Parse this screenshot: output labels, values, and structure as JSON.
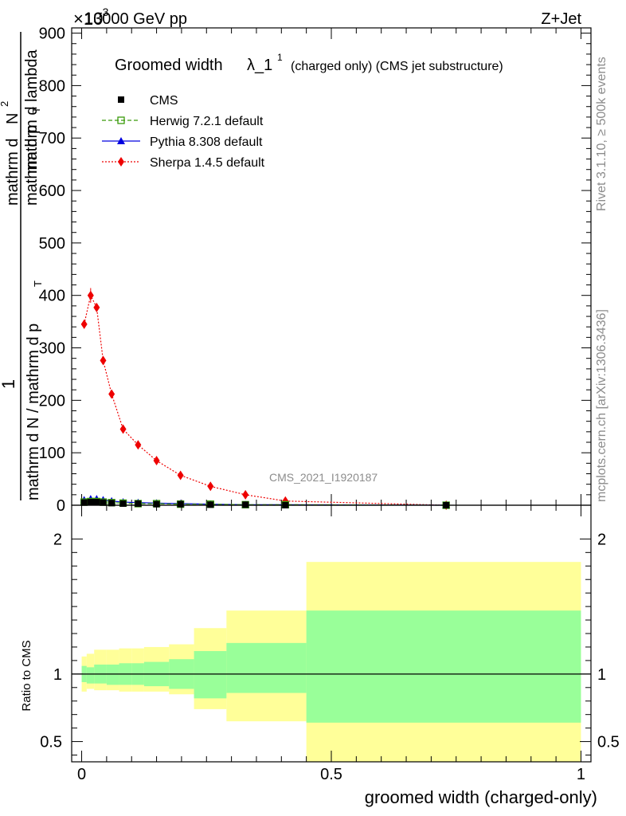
{
  "header": {
    "energy_label": "13000 GeV pp",
    "process_label": "Z+Jet",
    "exponent_label": "×10",
    "exponent_power": "-3"
  },
  "side_labels": {
    "rivet": "Rivet 3.1.10, ≥ 500k events",
    "mcplots": "mcplots.cern.ch [arXiv:1306.3436]"
  },
  "watermark": "CMS_2021_I1920187",
  "colors": {
    "herwig": "#3a9a0b",
    "pythia": "#0000e0",
    "sherpa": "#ee0000",
    "band_outer": "#ffff99",
    "band_inner": "#99ff99"
  },
  "chart_data": [
    {
      "type": "line",
      "title": "Groomed width",
      "title_symbol": "λ_1",
      "title_superscript": "1",
      "title_note": "(charged only) (CMS jet substructure)",
      "xlabel": "groomed width (charged-only)",
      "ylabel": {
        "numerator": "1",
        "denominator": "mathrm d N / mathrm d p",
        "denominator_sub": "T",
        "line2": "mathrm d",
        "line2b": "N",
        "line2c": "mathrm d p",
        "line2d": "mathrm d lambda",
        "line2_sub": "T",
        "line2_sup": "2"
      },
      "xlim": [
        -0.02,
        1.02
      ],
      "ylim": [
        0,
        910
      ],
      "y_multiplier": "1e-3",
      "y_ticks": [
        0,
        100,
        200,
        300,
        400,
        500,
        600,
        700,
        800,
        900
      ],
      "legend_position": "top-left",
      "legend": [
        {
          "name": "CMS",
          "marker": "square-filled"
        },
        {
          "name": "Herwig 7.2.1 default",
          "marker": "square-open"
        },
        {
          "name": "Pythia 8.308 default",
          "marker": "triangle"
        },
        {
          "name": "Sherpa 1.4.5 default",
          "marker": "diamond"
        }
      ],
      "series": [
        {
          "name": "Sherpa 1.4.5 default",
          "x": [
            0.005,
            0.018,
            0.03,
            0.043,
            0.06,
            0.083,
            0.113,
            0.15,
            0.198,
            0.258,
            0.328,
            0.408,
            0.73
          ],
          "y": [
            345,
            400,
            377,
            276,
            212,
            145,
            115,
            85,
            57,
            36,
            20,
            8,
            0
          ],
          "y_err": [
            8,
            14,
            7,
            5,
            4,
            3,
            3,
            2,
            2,
            2,
            1,
            1,
            0
          ]
        },
        {
          "name": "Pythia 8.308 default",
          "x": [
            0.005,
            0.018,
            0.03,
            0.043,
            0.06,
            0.083,
            0.113,
            0.15,
            0.198,
            0.258,
            0.328,
            0.408,
            0.73
          ],
          "y": [
            10,
            12,
            12,
            10,
            8,
            6,
            5,
            4,
            3,
            2,
            1,
            1,
            0
          ]
        },
        {
          "name": "Herwig 7.2.1 default",
          "x": [
            0.005,
            0.018,
            0.03,
            0.043,
            0.06,
            0.083,
            0.113,
            0.15,
            0.198,
            0.258,
            0.328,
            0.408,
            0.73
          ],
          "y": [
            6,
            7,
            7,
            6,
            5,
            4,
            3,
            3,
            2,
            2,
            1,
            1,
            0
          ]
        },
        {
          "name": "CMS",
          "x": [
            0.005,
            0.018,
            0.03,
            0.043,
            0.06,
            0.083,
            0.113,
            0.15,
            0.198,
            0.258,
            0.328,
            0.408,
            0.73
          ],
          "y": [
            5,
            6,
            6,
            5,
            4,
            3,
            3,
            2,
            2,
            1,
            1,
            0,
            0
          ]
        }
      ]
    },
    {
      "type": "area",
      "ylabel": "Ratio to CMS",
      "xlim": [
        -0.02,
        1.02
      ],
      "ylim": [
        0.35,
        2.25
      ],
      "y_ticks": [
        0.5,
        1,
        2
      ],
      "y_tick_labels": [
        "0.5",
        "1",
        "2"
      ],
      "x_ticks": [
        0,
        0.5,
        1
      ],
      "x_tick_labels": [
        "0",
        "0.5",
        "1"
      ],
      "reference_line": 1,
      "bins": [
        0,
        0.01,
        0.025,
        0.05,
        0.075,
        0.1,
        0.125,
        0.175,
        0.225,
        0.29,
        0.45,
        1.0
      ],
      "inner_band": {
        "lo": [
          0.94,
          0.93,
          0.93,
          0.92,
          0.92,
          0.92,
          0.91,
          0.89,
          0.82,
          0.86,
          0.64
        ],
        "hi": [
          1.06,
          1.05,
          1.07,
          1.07,
          1.08,
          1.08,
          1.09,
          1.11,
          1.17,
          1.23,
          1.47
        ]
      },
      "outer_band": {
        "lo": [
          0.87,
          0.89,
          0.88,
          0.88,
          0.87,
          0.87,
          0.87,
          0.85,
          0.74,
          0.65,
          0.35
        ],
        "hi": [
          1.13,
          1.15,
          1.18,
          1.18,
          1.19,
          1.19,
          1.2,
          1.22,
          1.34,
          1.47,
          1.83
        ]
      }
    }
  ]
}
